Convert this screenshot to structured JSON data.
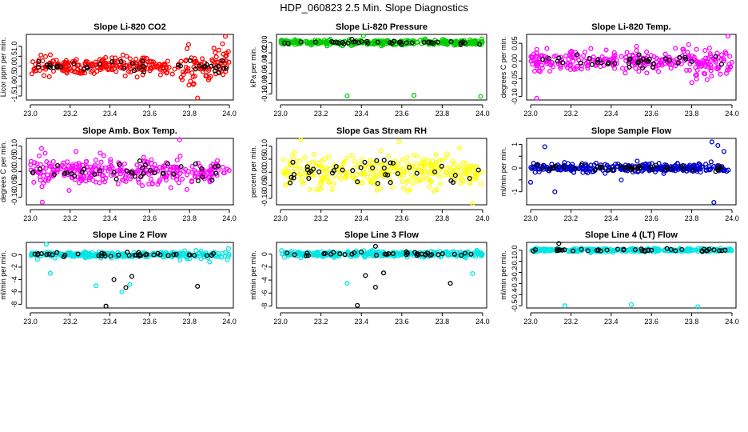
{
  "figure_title": "HDP_060823  2.5 Min. Slope Diagnostics",
  "chart_data": [
    {
      "type": "scatter",
      "title": "Slope Li-820 CO2",
      "ylabel": "Licor ppm per min.",
      "color": "#ff0000",
      "xlim": [
        22.98,
        24.02
      ],
      "ylim": [
        -1.7,
        1.6
      ],
      "xticks": [
        23.0,
        23.2,
        23.4,
        23.6,
        23.8,
        24.0
      ],
      "xtick_labels": [
        "23.0",
        "23.2",
        "23.4",
        "23.6",
        "23.8",
        "24.0"
      ],
      "yticks": [
        -1.5,
        -1.0,
        -0.5,
        0.0,
        0.5,
        1.0
      ],
      "ytick_labels": [
        "-1.5",
        "-1.0",
        "-0.5",
        "0.0",
        "0.5",
        "1.0"
      ],
      "spread": 0.35,
      "late_spread": 0.7,
      "outliers": [
        [
          23.98,
          1.5
        ],
        [
          23.84,
          -1.6
        ]
      ]
    },
    {
      "type": "scatter",
      "title": "Slope Li-820 Pressure",
      "ylabel": "kPa per min.",
      "color": "#00cc00",
      "xlim": [
        22.98,
        24.02
      ],
      "ylim": [
        -0.112,
        0.016
      ],
      "xticks": [
        23.0,
        23.2,
        23.4,
        23.6,
        23.8,
        24.0
      ],
      "xtick_labels": [
        "23.0",
        "23.2",
        "23.4",
        "23.6",
        "23.8",
        "24.0"
      ],
      "yticks": [
        -0.1,
        -0.08,
        -0.06,
        -0.04,
        -0.02,
        0.0
      ],
      "ytick_labels": [
        "-0.10",
        "-0.08",
        "-0.06",
        "-0.04",
        "-0.02",
        "0.00"
      ],
      "spread": 0.004,
      "late_spread": 0.004,
      "outliers": [
        [
          23.33,
          -0.104
        ],
        [
          23.66,
          -0.103
        ],
        [
          23.99,
          -0.105
        ],
        [
          23.41,
          0.013
        ]
      ]
    },
    {
      "type": "scatter",
      "title": "Slope Li-820 Temp.",
      "ylabel": "degrees C per min.",
      "color": "#ff00ff",
      "xlim": [
        22.98,
        24.02
      ],
      "ylim": [
        -0.11,
        0.075
      ],
      "xticks": [
        23.0,
        23.2,
        23.4,
        23.6,
        23.8,
        24.0
      ],
      "xtick_labels": [
        "23.0",
        "23.2",
        "23.4",
        "23.6",
        "23.8",
        "24.0"
      ],
      "yticks": [
        -0.1,
        -0.05,
        0.0,
        0.05
      ],
      "ytick_labels": [
        "-0.10",
        "-0.05",
        "0.00",
        "0.05"
      ],
      "spread": 0.022,
      "late_spread": 0.04,
      "outliers": [
        [
          23.03,
          -0.105
        ],
        [
          23.98,
          0.07
        ]
      ]
    },
    {
      "type": "scatter",
      "title": "Slope Amb. Box Temp.",
      "ylabel": "degrees C per min.",
      "color": "#ff00ff",
      "xlim": [
        22.98,
        24.02
      ],
      "ylim": [
        -0.13,
        0.13
      ],
      "xticks": [
        23.0,
        23.2,
        23.4,
        23.6,
        23.8,
        24.0
      ],
      "xtick_labels": [
        "23.0",
        "23.2",
        "23.4",
        "23.6",
        "23.8",
        "24.0"
      ],
      "yticks": [
        -0.1,
        -0.05,
        0.0,
        0.05,
        0.1
      ],
      "ytick_labels": [
        "-0.10",
        "-0.05",
        "0.00",
        "0.05",
        "0.10"
      ],
      "spread": 0.045,
      "late_spread": 0.045,
      "outliers": [
        [
          23.75,
          0.125
        ],
        [
          23.06,
          -0.12
        ]
      ]
    },
    {
      "type": "scatter",
      "title": "Slope Gas Stream RH",
      "ylabel": "percent per min.",
      "color": "#ffff00",
      "xlim": [
        22.98,
        24.02
      ],
      "ylim": [
        -0.125,
        0.13
      ],
      "xticks": [
        23.0,
        23.2,
        23.4,
        23.6,
        23.8,
        24.0
      ],
      "xtick_labels": [
        "23.0",
        "23.2",
        "23.4",
        "23.6",
        "23.8",
        "24.0"
      ],
      "yticks": [
        -0.1,
        -0.05,
        0.0,
        0.05,
        0.1
      ],
      "ytick_labels": [
        "-0.10",
        "-0.05",
        "0.00",
        "0.05",
        "0.10"
      ],
      "spread": 0.05,
      "late_spread": 0.05,
      "outliers": [
        [
          23.1,
          0.125
        ],
        [
          23.95,
          -0.12
        ]
      ]
    },
    {
      "type": "scatter",
      "title": "Slope Sample Flow",
      "ylabel": "ml/min per min.",
      "color": "#0000cc",
      "xlim": [
        22.98,
        24.02
      ],
      "ylim": [
        -1.55,
        1.25
      ],
      "xticks": [
        23.0,
        23.2,
        23.4,
        23.6,
        23.8,
        24.0
      ],
      "xtick_labels": [
        "23.0",
        "23.2",
        "23.4",
        "23.6",
        "23.8",
        "24.0"
      ],
      "yticks": [
        -1.0,
        -0.5,
        0.0,
        0.5,
        1.0
      ],
      "ytick_labels": [
        "-1",
        "",
        "0",
        "",
        "1"
      ],
      "spread": 0.15,
      "late_spread": 0.15,
      "outliers": [
        [
          23.07,
          0.9
        ],
        [
          23.12,
          -1.0
        ],
        [
          23.9,
          1.1
        ],
        [
          23.93,
          0.95
        ],
        [
          23.96,
          0.7
        ],
        [
          23.91,
          -1.45
        ],
        [
          23.45,
          -0.5
        ],
        [
          23.0,
          -0.6
        ]
      ]
    },
    {
      "type": "scatter",
      "title": "Slope Line 2 Flow",
      "ylabel": "ml/min per min.",
      "color": "#00e5e5",
      "xlim": [
        22.98,
        24.02
      ],
      "ylim": [
        -8.6,
        2.0
      ],
      "xticks": [
        23.0,
        23.2,
        23.4,
        23.6,
        23.8,
        24.0
      ],
      "xtick_labels": [
        "23.0",
        "23.2",
        "23.4",
        "23.6",
        "23.8",
        "24.0"
      ],
      "yticks": [
        -8,
        -6,
        -4,
        -2,
        0
      ],
      "ytick_labels": [
        "-8",
        "-6",
        "-4",
        "-2",
        "0"
      ],
      "spread": 0.35,
      "late_spread": 0.7,
      "outliers": [
        [
          23.08,
          1.7
        ],
        [
          23.33,
          -5.0
        ],
        [
          23.46,
          -6.0
        ],
        [
          23.5,
          -4.8
        ],
        [
          23.1,
          -3.0
        ]
      ],
      "black_outliers": [
        [
          23.38,
          -8.3
        ],
        [
          23.42,
          -4.0
        ],
        [
          23.48,
          -5.3
        ],
        [
          23.51,
          -3.5
        ],
        [
          23.84,
          -5.1
        ]
      ]
    },
    {
      "type": "scatter",
      "title": "Slope Line 3 Flow",
      "ylabel": "ml/min per min.",
      "color": "#00e5e5",
      "xlim": [
        22.98,
        24.02
      ],
      "ylim": [
        -8.3,
        1.8
      ],
      "xticks": [
        23.0,
        23.2,
        23.4,
        23.6,
        23.8,
        24.0
      ],
      "xtick_labels": [
        "23.0",
        "23.2",
        "23.4",
        "23.6",
        "23.8",
        "24.0"
      ],
      "yticks": [
        -8,
        -6,
        -4,
        -2,
        0
      ],
      "ytick_labels": [
        "-8",
        "-6",
        "-4",
        "-2",
        "0"
      ],
      "spread": 0.35,
      "late_spread": 0.35,
      "outliers": [
        [
          23.33,
          -4.5
        ],
        [
          23.95,
          -3.0
        ]
      ],
      "black_outliers": [
        [
          23.38,
          -7.9
        ],
        [
          23.42,
          -3.3
        ],
        [
          23.47,
          -5.1
        ],
        [
          23.51,
          -2.9
        ],
        [
          23.84,
          -4.5
        ],
        [
          23.47,
          1.2
        ]
      ]
    },
    {
      "type": "scatter",
      "title": "Slope Line 4 (LT) Flow",
      "ylabel": "ml/min per min.",
      "color": "#00e5e5",
      "xlim": [
        22.98,
        24.02
      ],
      "ylim": [
        -0.52,
        0.07
      ],
      "xticks": [
        23.0,
        23.2,
        23.4,
        23.6,
        23.8,
        24.0
      ],
      "xtick_labels": [
        "23.0",
        "23.2",
        "23.4",
        "23.6",
        "23.8",
        "24.0"
      ],
      "yticks": [
        -0.5,
        -0.4,
        -0.3,
        -0.2,
        -0.1,
        0.0
      ],
      "ytick_labels": [
        "-0.5",
        "-0.4",
        "-0.3",
        "-0.2",
        "-0.1",
        "0.0"
      ],
      "spread": 0.012,
      "late_spread": 0.012,
      "outliers": [
        [
          23.17,
          -0.5
        ],
        [
          23.5,
          -0.49
        ],
        [
          23.83,
          -0.51
        ]
      ],
      "black_outliers": [
        [
          23.14,
          0.06
        ]
      ]
    }
  ]
}
